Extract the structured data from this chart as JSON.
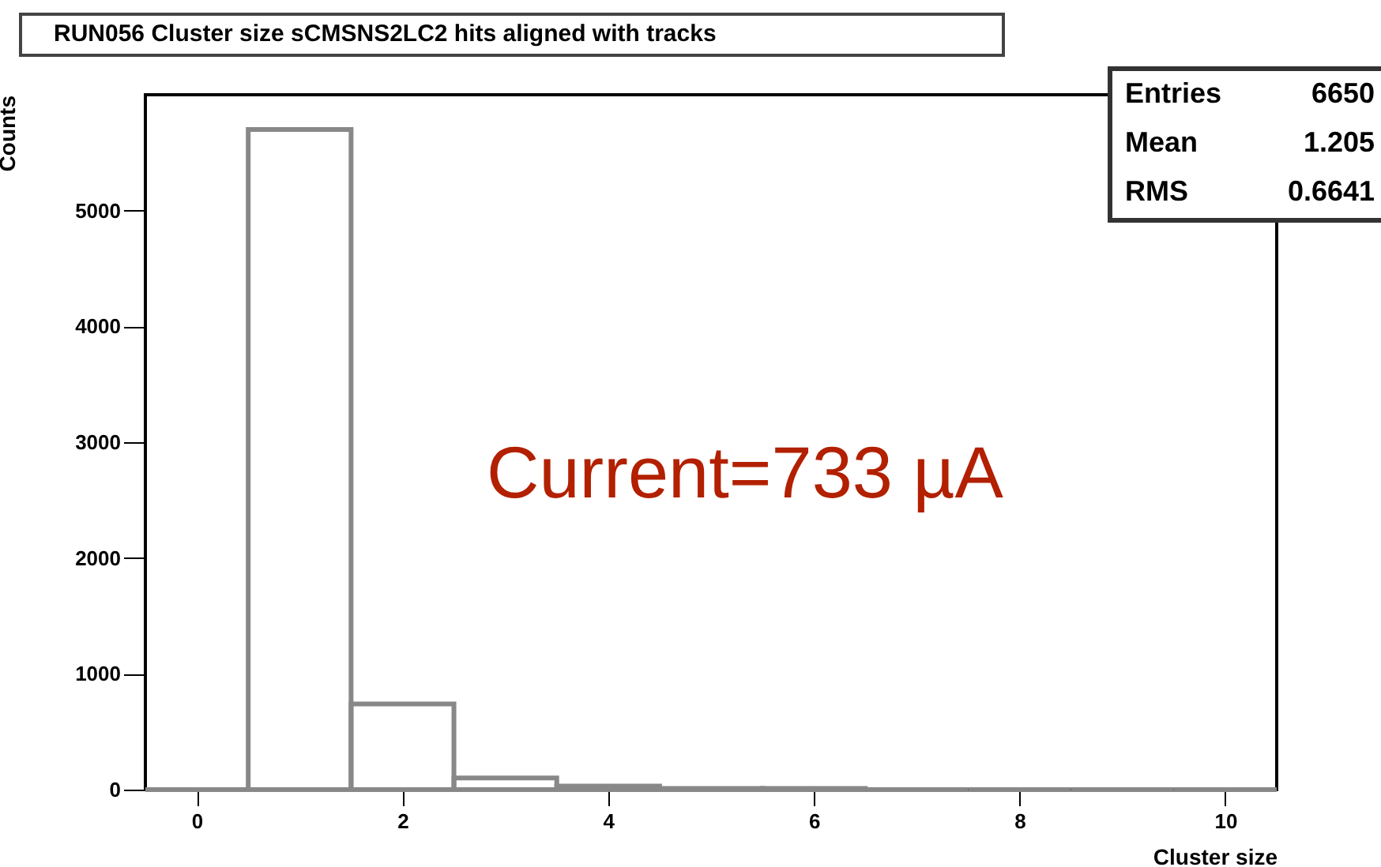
{
  "chart_data": {
    "type": "histogram",
    "title": "RUN056 Cluster size sCMSNS2LC2 hits aligned with tracks",
    "xlabel": "Cluster size",
    "ylabel": "Counts",
    "bins": [
      -0.5,
      0.5,
      1.5,
      2.5,
      3.5,
      4.5,
      5.5,
      6.5,
      7.5,
      8.5,
      9.5,
      10.5
    ],
    "values": [
      0,
      5700,
      740,
      100,
      30,
      10,
      10,
      0,
      0,
      0,
      0
    ],
    "color": "#888888",
    "xlim": [
      -0.5,
      10.5
    ],
    "xticks": [
      0,
      2,
      4,
      6,
      8,
      10
    ],
    "ylim": [
      0,
      6000
    ],
    "yticks": [
      0,
      1000,
      2000,
      3000,
      4000,
      5000
    ],
    "grid": false,
    "annotations": [
      "Current=733 µA",
      "Entries 6650",
      "Mean 1.205",
      "RMS 0.6641"
    ]
  }
}
